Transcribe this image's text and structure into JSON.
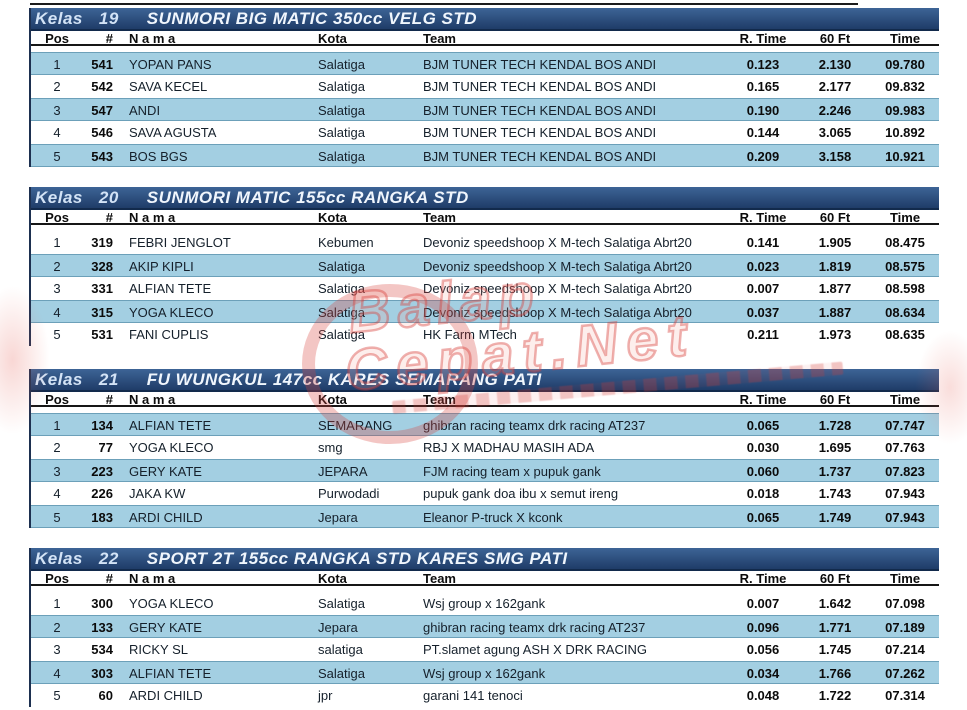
{
  "columns": {
    "pos": "Pos",
    "num": "#",
    "nama": "N a m a",
    "kota": "Kota",
    "team": "Team",
    "rtime": "R. Time",
    "sixty": "60 Ft",
    "time": "Time"
  },
  "watermark": {
    "line1": "Balap",
    "line2": "Cepat.Net",
    "color": "#d6413c"
  },
  "colors": {
    "bar_top": "#3d6496",
    "bar_bottom": "#1f3c68",
    "row_highlight": "#a3cfe2"
  },
  "sections": [
    {
      "kelas_label": "Kelas",
      "kelas_no": "19",
      "title": "SUNMORI BIG MATIC 350cc VELG STD",
      "rows": [
        {
          "pos": "1",
          "num": "541",
          "nama": "YOPAN PANS",
          "kota": "Salatiga",
          "team": "BJM TUNER TECH KENDAL BOS ANDI",
          "rtime": "0.123",
          "sixty": "2.130",
          "time": "09.780",
          "shaded": true
        },
        {
          "pos": "2",
          "num": "542",
          "nama": "SAVA KECEL",
          "kota": "Salatiga",
          "team": "BJM TUNER TECH KENDAL BOS ANDI",
          "rtime": "0.165",
          "sixty": "2.177",
          "time": "09.832",
          "shaded": false
        },
        {
          "pos": "3",
          "num": "547",
          "nama": "ANDI",
          "kota": "Salatiga",
          "team": "BJM TUNER TECH KENDAL BOS ANDI",
          "rtime": "0.190",
          "sixty": "2.246",
          "time": "09.983",
          "shaded": true
        },
        {
          "pos": "4",
          "num": "546",
          "nama": "SAVA AGUSTA",
          "kota": "Salatiga",
          "team": "BJM TUNER TECH KENDAL BOS ANDI",
          "rtime": "0.144",
          "sixty": "3.065",
          "time": "10.892",
          "shaded": false
        },
        {
          "pos": "5",
          "num": "543",
          "nama": "BOS BGS",
          "kota": "Salatiga",
          "team": "BJM TUNER TECH KENDAL BOS ANDI",
          "rtime": "0.209",
          "sixty": "3.158",
          "time": "10.921",
          "shaded": true
        }
      ]
    },
    {
      "kelas_label": "Kelas",
      "kelas_no": "20",
      "title": "SUNMORI MATIC 155cc RANGKA STD",
      "rows": [
        {
          "pos": "1",
          "num": "319",
          "nama": "FEBRI JENGLOT",
          "kota": "Kebumen",
          "team": "Devoniz speedshoop X M-tech Salatiga Abrt20",
          "rtime": "0.141",
          "sixty": "1.905",
          "time": "08.475",
          "shaded": false
        },
        {
          "pos": "2",
          "num": "328",
          "nama": "AKIP KIPLI",
          "kota": "Salatiga",
          "team": "Devoniz speedshoop X M-tech Salatiga Abrt20",
          "rtime": "0.023",
          "sixty": "1.819",
          "time": "08.575",
          "shaded": true
        },
        {
          "pos": "3",
          "num": "331",
          "nama": "ALFIAN TETE",
          "kota": "Salatiga",
          "team": "Devoniz speedshoop X M-tech Salatiga Abrt20",
          "rtime": "0.007",
          "sixty": "1.877",
          "time": "08.598",
          "shaded": false
        },
        {
          "pos": "4",
          "num": "315",
          "nama": "YOGA KLECO",
          "kota": "Salatiga",
          "team": "Devoniz speedshoop X M-tech Salatiga Abrt20",
          "rtime": "0.037",
          "sixty": "1.887",
          "time": "08.634",
          "shaded": true
        },
        {
          "pos": "5",
          "num": "531",
          "nama": "FANI CUPLIS",
          "kota": "Salatiga",
          "team": "HK Farm MTech",
          "rtime": "0.211",
          "sixty": "1.973",
          "time": "08.635",
          "shaded": false
        }
      ]
    },
    {
      "kelas_label": "Kelas",
      "kelas_no": "21",
      "title": "FU WUNGKUL 147cc KARES SEMARANG PATI",
      "rows": [
        {
          "pos": "1",
          "num": "134",
          "nama": "ALFIAN TETE",
          "kota": "SEMARANG",
          "team": "ghibran racing teamx drk racing AT237",
          "rtime": "0.065",
          "sixty": "1.728",
          "time": "07.747",
          "shaded": true
        },
        {
          "pos": "2",
          "num": "77",
          "nama": "YOGA KLECO",
          "kota": "smg",
          "team": "RBJ X MADHAU MASIH ADA",
          "rtime": "0.030",
          "sixty": "1.695",
          "time": "07.763",
          "shaded": false
        },
        {
          "pos": "3",
          "num": "223",
          "nama": "GERY KATE",
          "kota": "JEPARA",
          "team": "FJM racing team x pupuk gank",
          "rtime": "0.060",
          "sixty": "1.737",
          "time": "07.823",
          "shaded": true
        },
        {
          "pos": "4",
          "num": "226",
          "nama": "JAKA KW",
          "kota": "Purwodadi",
          "team": "pupuk gank doa ibu x semut ireng",
          "rtime": "0.018",
          "sixty": "1.743",
          "time": "07.943",
          "shaded": false
        },
        {
          "pos": "5",
          "num": "183",
          "nama": "ARDI CHILD",
          "kota": "Jepara",
          "team": "Eleanor P-truck X kconk",
          "rtime": "0.065",
          "sixty": "1.749",
          "time": "07.943",
          "shaded": true
        }
      ]
    },
    {
      "kelas_label": "Kelas",
      "kelas_no": "22",
      "title": "SPORT 2T 155cc RANGKA STD KARES SMG PATI",
      "rows": [
        {
          "pos": "1",
          "num": "300",
          "nama": "YOGA KLECO",
          "kota": "Salatiga",
          "team": "Wsj group x 162gank",
          "rtime": "0.007",
          "sixty": "1.642",
          "time": "07.098",
          "shaded": false
        },
        {
          "pos": "2",
          "num": "133",
          "nama": "GERY KATE",
          "kota": "Jepara",
          "team": "ghibran racing teamx drk racing AT237",
          "rtime": "0.096",
          "sixty": "1.771",
          "time": "07.189",
          "shaded": true
        },
        {
          "pos": "3",
          "num": "534",
          "nama": "RICKY SL",
          "kota": "salatiga",
          "team": "PT.slamet agung ASH X DRK RACING",
          "rtime": "0.056",
          "sixty": "1.745",
          "time": "07.214",
          "shaded": false
        },
        {
          "pos": "4",
          "num": "303",
          "nama": "ALFIAN TETE",
          "kota": "Salatiga",
          "team": "Wsj group x 162gank",
          "rtime": "0.034",
          "sixty": "1.766",
          "time": "07.262",
          "shaded": true
        },
        {
          "pos": "5",
          "num": "60",
          "nama": "ARDI CHILD",
          "kota": "jpr",
          "team": "garani 141 tenoci",
          "rtime": "0.048",
          "sixty": "1.722",
          "time": "07.314",
          "shaded": false
        }
      ]
    }
  ]
}
